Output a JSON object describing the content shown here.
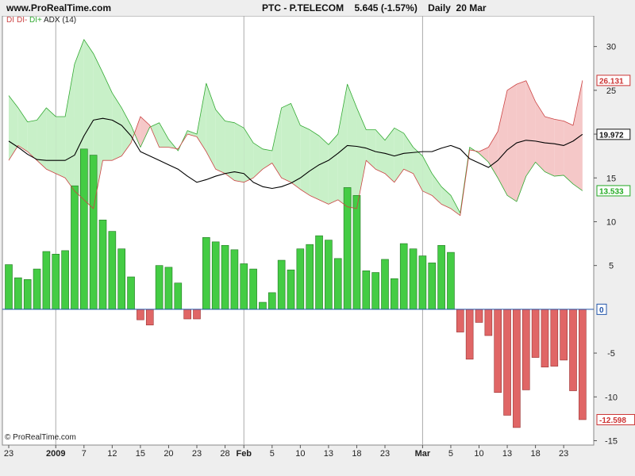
{
  "header": {
    "site": "www.ProRealTime.com",
    "title": "PTC - P.TELECOM    5.645 (-1.57%)    Daily  20 Mar"
  },
  "legend": {
    "di": "DI",
    "di_minus": "DI-",
    "di_plus": "DI+",
    "adx": "ADX (14)"
  },
  "watermark": "© ProRealTime.com",
  "colors": {
    "di_pos_bar": "#44cc44",
    "di_neg_bar": "#e06666",
    "di_plus_line": "#33aa33",
    "di_minus_line": "#cc4444",
    "fill_green": "#c8f0c8",
    "fill_red": "#f5c8c8",
    "adx_line": "#000000",
    "value_red": "#cc3333",
    "value_green": "#22aa22"
  },
  "chart_data": {
    "type": "bar",
    "title": "PTC - P.TELECOM Daily DI / DI+ / DI- / ADX (14)",
    "x_tick_labels": [
      {
        "label": "23",
        "index": 0
      },
      {
        "label": "2009",
        "index": 5
      },
      {
        "label": "7",
        "index": 8
      },
      {
        "label": "12",
        "index": 11
      },
      {
        "label": "15",
        "index": 14
      },
      {
        "label": "20",
        "index": 17
      },
      {
        "label": "23",
        "index": 20
      },
      {
        "label": "28",
        "index": 23
      },
      {
        "label": "Feb",
        "index": 25
      },
      {
        "label": "5",
        "index": 28
      },
      {
        "label": "10",
        "index": 31
      },
      {
        "label": "13",
        "index": 34
      },
      {
        "label": "18",
        "index": 37
      },
      {
        "label": "23",
        "index": 40
      },
      {
        "label": "Mar",
        "index": 44
      },
      {
        "label": "5",
        "index": 47
      },
      {
        "label": "10",
        "index": 50
      },
      {
        "label": "13",
        "index": 53
      },
      {
        "label": "18",
        "index": 56
      },
      {
        "label": "23",
        "index": 59
      }
    ],
    "month_divider_indices": [
      5,
      25,
      44
    ],
    "ylim": [
      -15.5,
      33.5
    ],
    "y_ticks": [
      30,
      25,
      20,
      15,
      10,
      5,
      -5,
      -10,
      -15
    ],
    "zero_label": "0",
    "series": [
      {
        "name": "DI",
        "type": "bar",
        "values": [
          5.1,
          3.6,
          3.4,
          4.6,
          6.6,
          6.3,
          6.7,
          14.1,
          18.3,
          17.6,
          10.2,
          8.9,
          6.9,
          3.7,
          -1.2,
          -1.8,
          5.0,
          4.8,
          3.0,
          -1.1,
          -1.1,
          8.2,
          7.7,
          7.3,
          6.8,
          5.2,
          4.6,
          0.8,
          1.9,
          5.6,
          4.5,
          6.9,
          7.4,
          8.4,
          7.9,
          5.8,
          13.9,
          13.0,
          4.4,
          4.2,
          5.7,
          3.5,
          7.5,
          6.9,
          6.1,
          5.3,
          7.3,
          6.5,
          -2.6,
          -5.7,
          -1.5,
          -3.0,
          -9.5,
          -12.1,
          -13.5,
          -9.2,
          -5.5,
          -6.6,
          -6.5,
          -5.8,
          -9.3,
          -12.598
        ],
        "last_value_label": "-12.598"
      },
      {
        "name": "DI+",
        "type": "line",
        "values": [
          24.4,
          23.0,
          21.4,
          21.6,
          23.0,
          22.0,
          22.0,
          28.0,
          30.8,
          29.2,
          27.0,
          24.7,
          23.0,
          21.0,
          18.5,
          20.8,
          21.3,
          19.4,
          18.1,
          20.4,
          20.0,
          25.8,
          22.8,
          21.5,
          21.3,
          20.7,
          19.0,
          18.3,
          18.1,
          23.0,
          23.5,
          21.0,
          20.5,
          19.8,
          18.8,
          20.0,
          25.7,
          23.0,
          20.5,
          20.5,
          19.3,
          20.7,
          20.1,
          18.5,
          17.5,
          15.5,
          14.0,
          13.0,
          11.0,
          18.5,
          17.8,
          16.8,
          15.0,
          13.0,
          12.3,
          15.2,
          16.8,
          15.7,
          15.2,
          15.3,
          14.3,
          13.533
        ],
        "last_value_label": "13.533"
      },
      {
        "name": "DI-",
        "type": "line",
        "values": [
          17.0,
          18.7,
          18.0,
          17.0,
          16.0,
          15.5,
          15.0,
          13.5,
          12.5,
          11.5,
          17.0,
          17.0,
          17.5,
          19.0,
          22.0,
          21.0,
          18.5,
          18.5,
          18.3,
          20.0,
          19.7,
          18.0,
          16.0,
          15.5,
          14.7,
          14.5,
          15.0,
          16.0,
          16.7,
          15.0,
          14.5,
          13.7,
          13.0,
          12.5,
          12.0,
          12.5,
          11.7,
          11.5,
          17.0,
          16.0,
          15.5,
          14.5,
          16.0,
          15.5,
          13.5,
          13.0,
          12.0,
          11.5,
          10.7,
          18.2,
          18.0,
          18.5,
          20.3,
          25.0,
          25.7,
          26.1,
          23.7,
          22.0,
          21.7,
          21.5,
          21.0,
          26.131
        ],
        "last_value_label": "26.131"
      },
      {
        "name": "ADX (14)",
        "type": "line",
        "values": [
          19.2,
          18.5,
          17.7,
          17.1,
          17.0,
          17.0,
          17.0,
          17.6,
          19.8,
          21.6,
          21.8,
          21.6,
          21.0,
          19.8,
          18.0,
          17.5,
          17.0,
          16.5,
          16.0,
          15.2,
          14.5,
          14.8,
          15.2,
          15.5,
          15.7,
          15.5,
          14.5,
          14.0,
          13.8,
          14.0,
          14.4,
          15.0,
          15.8,
          16.5,
          17.0,
          17.8,
          18.7,
          18.6,
          18.4,
          18.0,
          17.8,
          17.5,
          17.8,
          17.9,
          18.0,
          18.0,
          18.4,
          18.7,
          18.3,
          17.2,
          16.7,
          16.2,
          17.0,
          18.2,
          19.0,
          19.3,
          19.2,
          19.0,
          18.9,
          18.7,
          19.2,
          19.972
        ],
        "last_value_label": "19.972"
      }
    ]
  }
}
